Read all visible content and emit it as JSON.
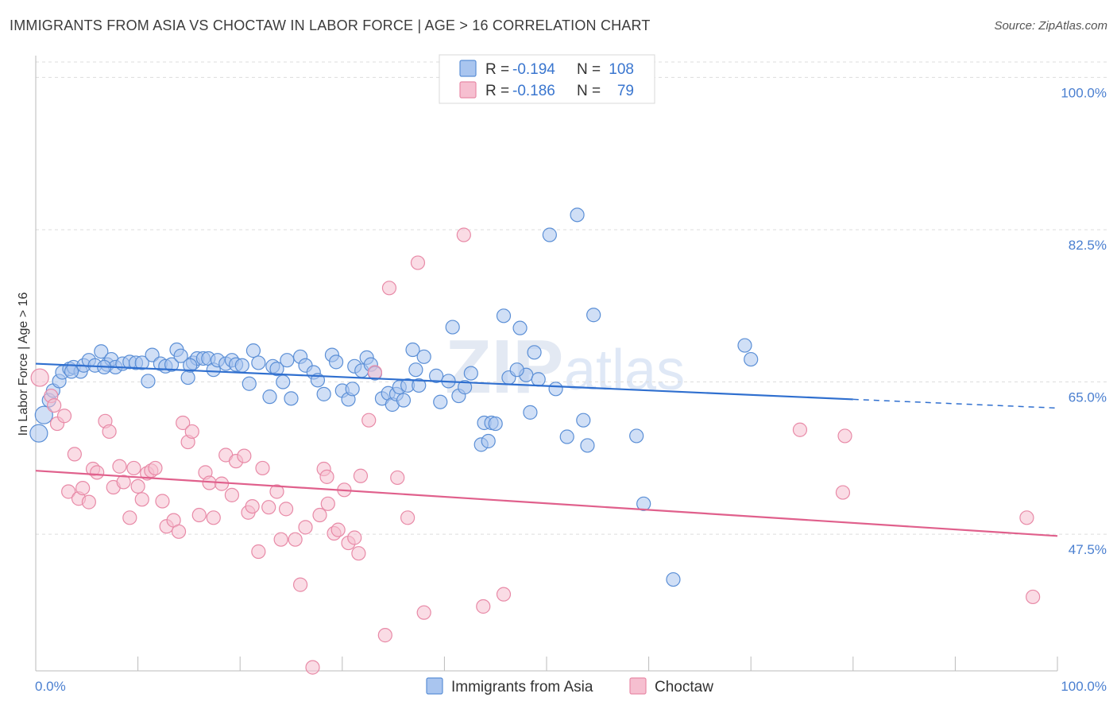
{
  "title": "IMMIGRANTS FROM ASIA VS CHOCTAW IN LABOR FORCE | AGE > 16 CORRELATION CHART",
  "source": "Source: ZipAtlas.com",
  "watermark": {
    "zip": "ZIP",
    "atlas": "atlas"
  },
  "legend": {
    "rows": [
      {
        "r_label": "R =",
        "r_value": "-0.194",
        "n_label": "N =",
        "n_value": "108"
      },
      {
        "r_label": "R =",
        "r_value": "-0.186",
        "n_label": "N =",
        "n_value": "79"
      }
    ]
  },
  "colors": {
    "asia_fill": "#a9c5ef",
    "asia_stroke": "#5b8fd6",
    "asia_line": "#2f6fcf",
    "choctaw_fill": "#f6bfd0",
    "choctaw_stroke": "#e88aa7",
    "choctaw_line": "#e0608c",
    "grid": "#dddddd",
    "axis_label": "#4a7fd0"
  },
  "chart_data": {
    "type": "scatter",
    "title": "IMMIGRANTS FROM ASIA VS CHOCTAW IN LABOR FORCE | AGE > 16 CORRELATION CHART",
    "xlabel": "",
    "ylabel": "In Labor Force | Age > 16",
    "xlim": [
      0,
      100
    ],
    "ylim": [
      31.8,
      102.5
    ],
    "x_tick_labels": [
      "0.0%",
      "100.0%"
    ],
    "y_ticks": [
      47.5,
      65.0,
      82.5,
      100.0
    ],
    "y_tick_labels": [
      "47.5%",
      "65.0%",
      "82.5%",
      "100.0%"
    ],
    "grid": true,
    "legend_position": "top-center",
    "series": [
      {
        "name": "Immigrants from Asia",
        "r": -0.194,
        "n": 108,
        "trend": {
          "x0": 0,
          "y0": 67.1,
          "x1": 80,
          "y1": 63.0,
          "dashed_to_x": 100,
          "dashed_to_y": 62.0
        },
        "points": [
          [
            0.3,
            59.1
          ],
          [
            0.8,
            61.2
          ],
          [
            1.3,
            62.9
          ],
          [
            1.7,
            64.0
          ],
          [
            2.3,
            65.1
          ],
          [
            2.6,
            66.1
          ],
          [
            3.3,
            66.5
          ],
          [
            3.7,
            66.7
          ],
          [
            4.4,
            66.2
          ],
          [
            4.7,
            66.9
          ],
          [
            5.2,
            67.5
          ],
          [
            5.8,
            66.9
          ],
          [
            6.4,
            68.5
          ],
          [
            7.0,
            67.0
          ],
          [
            7.4,
            67.6
          ],
          [
            7.8,
            66.7
          ],
          [
            8.5,
            67.1
          ],
          [
            9.2,
            67.3
          ],
          [
            9.8,
            67.2
          ],
          [
            10.4,
            67.2
          ],
          [
            11.0,
            65.1
          ],
          [
            11.4,
            68.1
          ],
          [
            12.2,
            67.1
          ],
          [
            12.7,
            66.8
          ],
          [
            13.3,
            67.0
          ],
          [
            13.8,
            68.7
          ],
          [
            14.2,
            68.0
          ],
          [
            14.9,
            65.5
          ],
          [
            15.4,
            67.2
          ],
          [
            15.8,
            67.7
          ],
          [
            16.4,
            67.7
          ],
          [
            16.9,
            67.7
          ],
          [
            17.4,
            66.4
          ],
          [
            17.8,
            67.5
          ],
          [
            18.6,
            67.1
          ],
          [
            19.2,
            67.5
          ],
          [
            19.6,
            67.0
          ],
          [
            20.2,
            66.9
          ],
          [
            20.9,
            64.8
          ],
          [
            21.3,
            68.6
          ],
          [
            21.8,
            67.2
          ],
          [
            22.9,
            63.3
          ],
          [
            23.2,
            66.8
          ],
          [
            23.6,
            66.5
          ],
          [
            24.2,
            65.0
          ],
          [
            24.6,
            67.5
          ],
          [
            25.0,
            63.1
          ],
          [
            25.9,
            67.9
          ],
          [
            26.4,
            66.9
          ],
          [
            27.2,
            66.1
          ],
          [
            27.6,
            65.2
          ],
          [
            28.2,
            63.6
          ],
          [
            29.0,
            68.1
          ],
          [
            29.4,
            67.3
          ],
          [
            30.0,
            64.0
          ],
          [
            30.6,
            63.0
          ],
          [
            31.2,
            66.8
          ],
          [
            31.9,
            66.3
          ],
          [
            32.4,
            67.8
          ],
          [
            32.8,
            67.0
          ],
          [
            33.2,
            66.0
          ],
          [
            33.9,
            63.1
          ],
          [
            34.5,
            63.7
          ],
          [
            34.9,
            62.4
          ],
          [
            35.3,
            63.6
          ],
          [
            35.6,
            64.4
          ],
          [
            36.4,
            64.6
          ],
          [
            36.9,
            68.7
          ],
          [
            37.5,
            64.6
          ],
          [
            38.0,
            67.9
          ],
          [
            39.2,
            65.7
          ],
          [
            39.6,
            62.7
          ],
          [
            40.4,
            65.1
          ],
          [
            40.8,
            71.3
          ],
          [
            41.4,
            63.4
          ],
          [
            42.0,
            64.4
          ],
          [
            42.6,
            66.0
          ],
          [
            43.6,
            57.8
          ],
          [
            43.9,
            60.3
          ],
          [
            44.6,
            60.3
          ],
          [
            45.0,
            60.2
          ],
          [
            45.8,
            72.6
          ],
          [
            46.3,
            65.5
          ],
          [
            47.4,
            71.2
          ],
          [
            48.0,
            65.8
          ],
          [
            48.4,
            61.5
          ],
          [
            48.8,
            68.4
          ],
          [
            49.2,
            65.3
          ],
          [
            50.3,
            81.9
          ],
          [
            50.9,
            64.2
          ],
          [
            52.0,
            58.7
          ],
          [
            53.0,
            84.2
          ],
          [
            53.6,
            60.6
          ],
          [
            54.0,
            57.7
          ],
          [
            54.6,
            72.7
          ],
          [
            58.8,
            58.8
          ],
          [
            59.5,
            51.0
          ],
          [
            62.4,
            42.3
          ],
          [
            69.4,
            69.2
          ],
          [
            70.0,
            67.6
          ],
          [
            3.5,
            66.2
          ],
          [
            6.7,
            66.7
          ],
          [
            15.1,
            66.9
          ],
          [
            31.0,
            64.2
          ],
          [
            36.0,
            62.9
          ],
          [
            37.2,
            66.4
          ],
          [
            44.3,
            58.2
          ],
          [
            47.1,
            66.4
          ]
        ]
      },
      {
        "name": "Choctaw",
        "r": -0.186,
        "n": 79,
        "trend": {
          "x0": 0,
          "y0": 54.8,
          "x1": 100,
          "y1": 47.3
        },
        "points": [
          [
            0.4,
            65.5
          ],
          [
            1.5,
            63.4
          ],
          [
            1.8,
            62.3
          ],
          [
            2.1,
            60.2
          ],
          [
            2.8,
            61.1
          ],
          [
            3.2,
            52.4
          ],
          [
            3.8,
            56.7
          ],
          [
            4.2,
            51.6
          ],
          [
            4.6,
            52.8
          ],
          [
            5.2,
            51.2
          ],
          [
            5.6,
            55.0
          ],
          [
            6.0,
            54.6
          ],
          [
            6.8,
            60.5
          ],
          [
            7.2,
            59.3
          ],
          [
            7.6,
            52.9
          ],
          [
            8.2,
            55.3
          ],
          [
            8.6,
            53.5
          ],
          [
            9.2,
            49.4
          ],
          [
            9.6,
            55.1
          ],
          [
            10.0,
            53.0
          ],
          [
            10.4,
            51.5
          ],
          [
            10.9,
            54.5
          ],
          [
            11.3,
            54.8
          ],
          [
            11.7,
            55.1
          ],
          [
            12.4,
            51.3
          ],
          [
            12.8,
            48.4
          ],
          [
            13.5,
            49.1
          ],
          [
            14.0,
            47.8
          ],
          [
            14.4,
            60.3
          ],
          [
            14.9,
            58.1
          ],
          [
            15.3,
            59.3
          ],
          [
            16.0,
            49.7
          ],
          [
            16.6,
            54.6
          ],
          [
            17.0,
            53.4
          ],
          [
            17.4,
            49.4
          ],
          [
            18.2,
            53.3
          ],
          [
            18.6,
            56.6
          ],
          [
            19.2,
            52.0
          ],
          [
            19.6,
            55.9
          ],
          [
            20.4,
            56.5
          ],
          [
            20.8,
            50.0
          ],
          [
            21.2,
            50.7
          ],
          [
            21.8,
            45.5
          ],
          [
            22.2,
            55.1
          ],
          [
            22.8,
            50.6
          ],
          [
            23.6,
            52.4
          ],
          [
            24.0,
            46.9
          ],
          [
            24.5,
            50.4
          ],
          [
            25.4,
            46.9
          ],
          [
            25.9,
            41.7
          ],
          [
            26.4,
            48.3
          ],
          [
            27.1,
            32.2
          ],
          [
            27.8,
            49.7
          ],
          [
            28.2,
            55.0
          ],
          [
            28.6,
            51.0
          ],
          [
            29.2,
            47.6
          ],
          [
            29.6,
            48.0
          ],
          [
            30.2,
            52.6
          ],
          [
            30.6,
            46.5
          ],
          [
            31.2,
            47.1
          ],
          [
            31.6,
            45.3
          ],
          [
            31.8,
            54.2
          ],
          [
            32.6,
            60.6
          ],
          [
            33.2,
            66.1
          ],
          [
            34.2,
            35.9
          ],
          [
            34.6,
            75.8
          ],
          [
            35.4,
            54.0
          ],
          [
            36.4,
            49.4
          ],
          [
            37.4,
            78.7
          ],
          [
            38.0,
            38.5
          ],
          [
            41.9,
            81.9
          ],
          [
            43.8,
            39.2
          ],
          [
            45.8,
            40.6
          ],
          [
            74.8,
            59.5
          ],
          [
            79.0,
            52.3
          ],
          [
            79.2,
            58.8
          ],
          [
            97.0,
            49.4
          ],
          [
            97.6,
            40.3
          ],
          [
            28.5,
            54.1
          ]
        ]
      }
    ]
  }
}
